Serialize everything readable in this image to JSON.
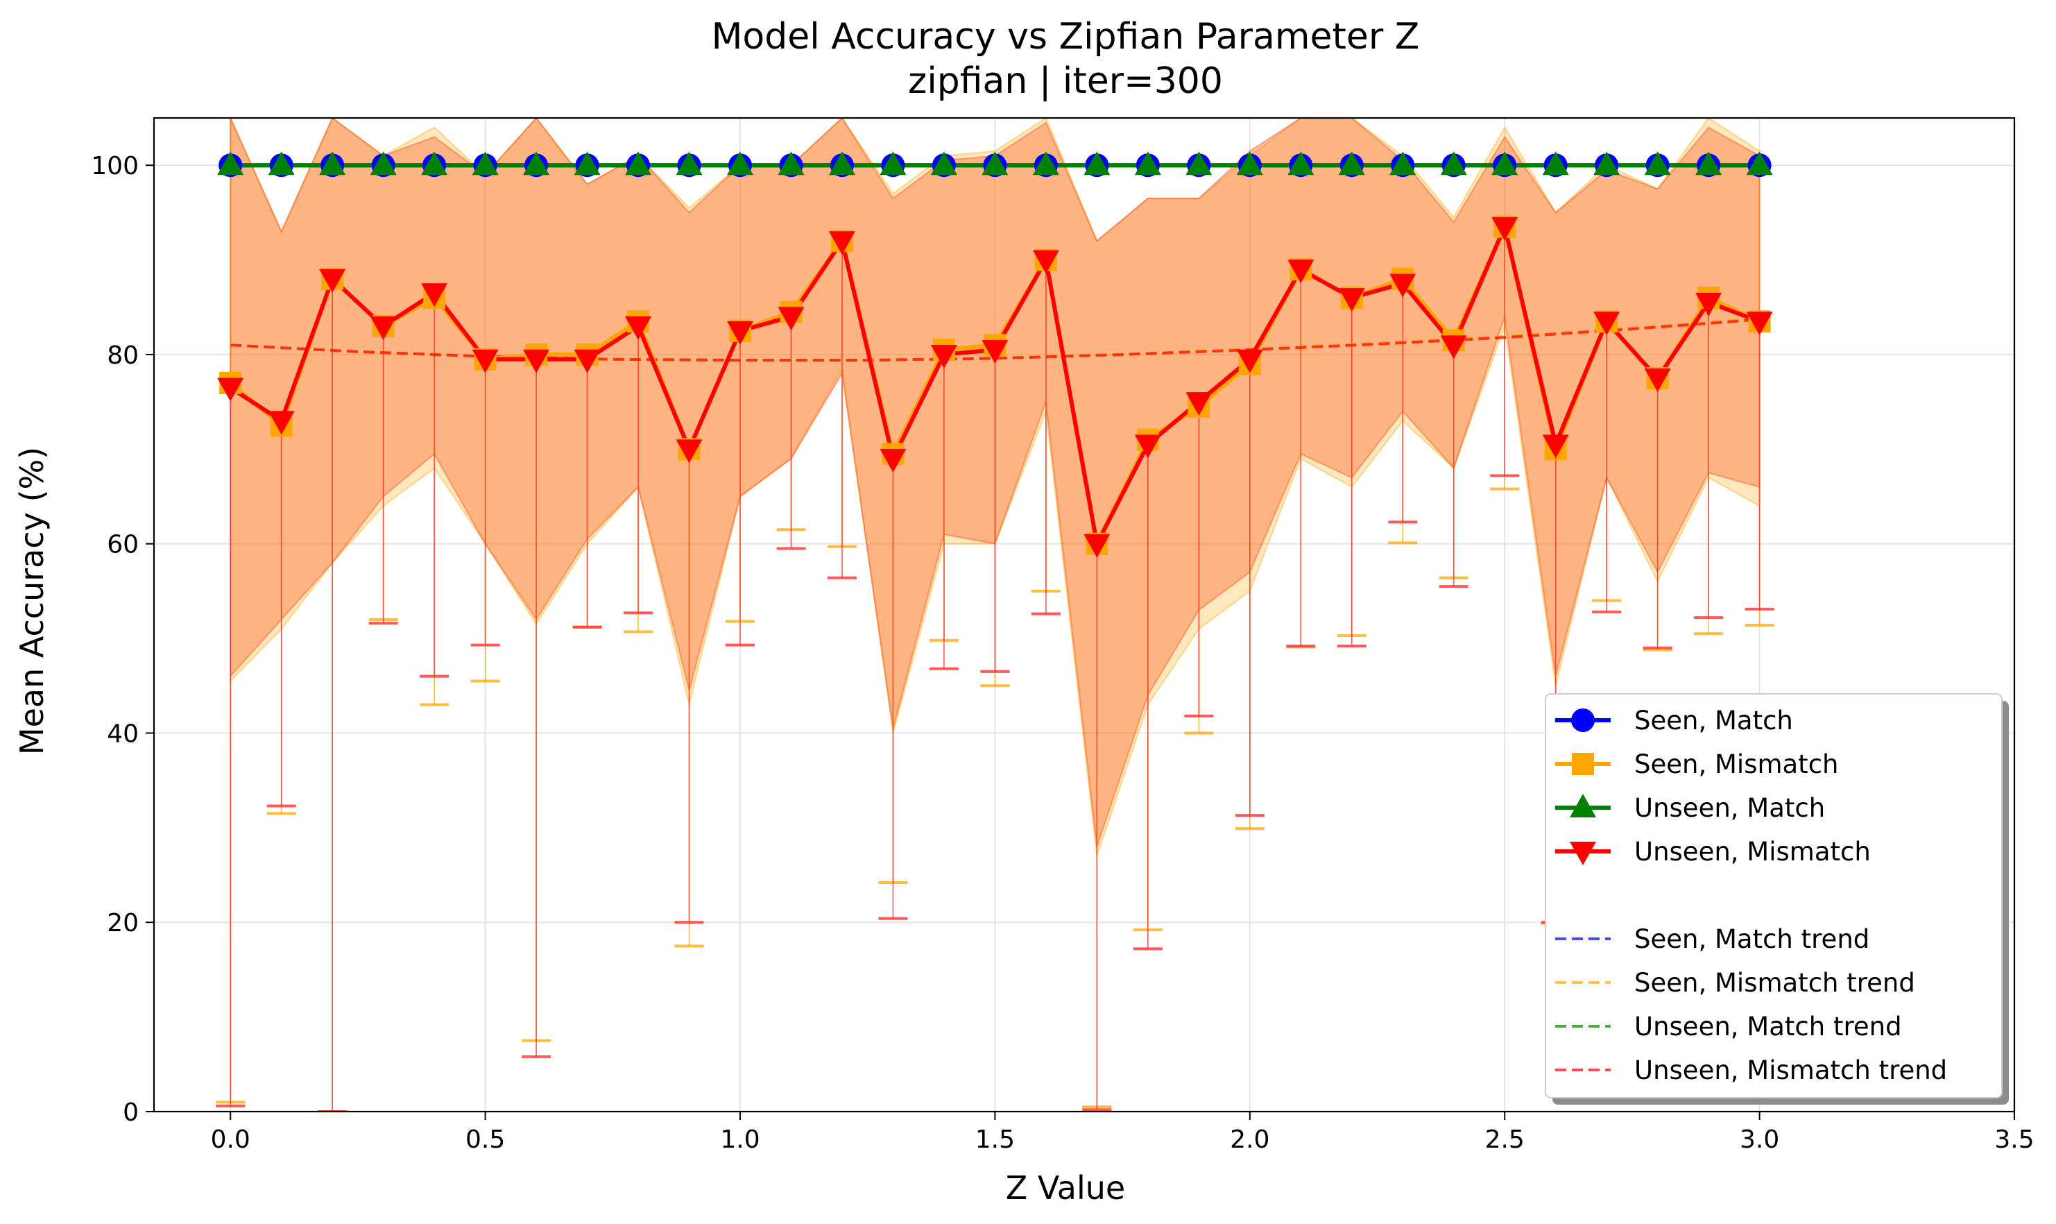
{
  "chart_data": {
    "type": "line",
    "title": "Model Accuracy vs Zipfian Parameter Z",
    "subtitle": "zipfian | iter=300",
    "xlabel": "Z Value",
    "ylabel": "Mean Accuracy (%)",
    "xlim": [
      -0.15,
      3.5
    ],
    "ylim": [
      0,
      105
    ],
    "xticks": [
      0.0,
      0.5,
      1.0,
      1.5,
      2.0,
      2.5,
      3.0,
      3.5
    ],
    "xtick_labels": [
      "0.0",
      "0.5",
      "1.0",
      "1.5",
      "2.0",
      "2.5",
      "3.0",
      "3.5"
    ],
    "yticks": [
      0,
      20,
      40,
      60,
      80,
      100
    ],
    "ytick_labels": [
      "0",
      "20",
      "40",
      "60",
      "80",
      "100"
    ],
    "grid": true,
    "legend_position": "lower-right",
    "x": [
      0.0,
      0.1,
      0.2,
      0.3,
      0.4,
      0.5,
      0.6,
      0.7,
      0.8,
      0.9,
      1.0,
      1.1,
      1.2,
      1.3,
      1.4,
      1.5,
      1.6,
      1.7,
      1.8,
      1.9,
      2.0,
      2.1,
      2.2,
      2.3,
      2.4,
      2.5,
      2.6,
      2.7,
      2.8,
      2.9,
      3.0
    ],
    "series": [
      {
        "name": "Seen, Match",
        "color": "#0000ff",
        "marker": "circle",
        "values": [
          100,
          100,
          100,
          100,
          100,
          100,
          100,
          100,
          100,
          100,
          100,
          100,
          100,
          100,
          100,
          100,
          100,
          100,
          100,
          100,
          100,
          100,
          100,
          100,
          100,
          100,
          100,
          100,
          100,
          100,
          100
        ]
      },
      {
        "name": "Seen, Mismatch",
        "color": "#ffa500",
        "marker": "square",
        "values": [
          77,
          72.5,
          88,
          83,
          86,
          79.5,
          80,
          80,
          83.5,
          70,
          82.5,
          84.5,
          92,
          69.5,
          80.5,
          81,
          90,
          60,
          71,
          74.5,
          79,
          89,
          86,
          88,
          81.5,
          93.5,
          70,
          83.5,
          77.5,
          86,
          83.5
        ],
        "band_lower": [
          45.5,
          51,
          58,
          64,
          68,
          60,
          51.5,
          60,
          66,
          43,
          65,
          69,
          78.5,
          40,
          60,
          60,
          74,
          27,
          43,
          51,
          55,
          69,
          66,
          73,
          68,
          83,
          45,
          67,
          56,
          67,
          64
        ],
        "band_upper": [
          105,
          93,
          105,
          101,
          104,
          99,
          105,
          98,
          101,
          95.5,
          100,
          100,
          105,
          97,
          101,
          101.5,
          105,
          92,
          96.5,
          96.5,
          101,
          105,
          105,
          101,
          94.5,
          104,
          95,
          100,
          97.5,
          105,
          101.5
        ],
        "err_lower": [
          1.0,
          31.5,
          0.0,
          52.0,
          43.0,
          45.5,
          7.5,
          51.2,
          50.7,
          17.5,
          51.8,
          61.5,
          59.7,
          24.2,
          49.8,
          45.0,
          55.0,
          0.5,
          19.2,
          40.0,
          29.9,
          49.1,
          50.3,
          60.1,
          56.4,
          65.8,
          19.9,
          54.0,
          48.8,
          50.5,
          51.4
        ]
      },
      {
        "name": "Unseen, Match",
        "color": "#008000",
        "marker": "triangle-up",
        "values": [
          100,
          100,
          100,
          100,
          100,
          100,
          100,
          100,
          100,
          100,
          100,
          100,
          100,
          100,
          100,
          100,
          100,
          100,
          100,
          100,
          100,
          100,
          100,
          100,
          100,
          100,
          100,
          100,
          100,
          100,
          100
        ]
      },
      {
        "name": "Unseen, Mismatch",
        "color": "#ff0000",
        "marker": "triangle-down",
        "values": [
          76.5,
          73,
          88,
          83,
          86.5,
          79.5,
          79.5,
          79.5,
          83,
          70,
          82.5,
          84,
          92,
          69,
          80,
          80.5,
          90,
          60,
          70.5,
          75,
          79.5,
          89,
          86,
          87.5,
          81,
          93.5,
          70.5,
          83.5,
          77.5,
          85.5,
          83.5
        ],
        "band_lower": [
          46,
          52,
          58,
          65,
          69.5,
          60,
          52,
          60.5,
          66,
          44.5,
          65,
          69,
          78,
          40.5,
          61,
          60,
          75,
          28,
          44,
          53,
          57,
          69.5,
          67,
          74,
          68,
          84,
          46,
          67,
          57,
          67.5,
          66
        ],
        "band_upper": [
          105,
          93,
          105,
          101,
          103,
          99,
          105,
          98,
          101,
          95,
          100,
          100,
          105,
          96.5,
          100.5,
          101,
          104.5,
          92,
          96.5,
          96.5,
          101.5,
          105,
          105,
          100.5,
          94,
          103,
          95,
          99.5,
          97.5,
          104,
          101
        ],
        "err_lower": [
          0.6,
          32.3,
          0.0,
          51.6,
          46.0,
          49.3,
          5.8,
          51.2,
          52.7,
          20.0,
          49.3,
          59.5,
          56.4,
          20.4,
          46.8,
          46.5,
          52.6,
          0.2,
          17.2,
          41.8,
          31.3,
          49.2,
          49.2,
          62.3,
          55.5,
          67.2,
          20.0,
          52.8,
          49.0,
          52.2,
          53.1
        ]
      }
    ],
    "trends": [
      {
        "name": "Seen, Match trend",
        "color": "#0000ff",
        "x": [
          0.0,
          0.5,
          1.0,
          1.5,
          2.0,
          2.5,
          3.0
        ],
        "values": [
          100,
          100,
          100,
          100,
          100,
          100,
          100
        ]
      },
      {
        "name": "Seen, Mismatch trend",
        "color": "#ffa500",
        "x": [
          0.0,
          0.25,
          0.5,
          0.75,
          1.0,
          1.25,
          1.5,
          1.75,
          2.0,
          2.25,
          2.5,
          2.75,
          3.0
        ],
        "values": [
          81,
          80.3,
          79.8,
          79.5,
          79.4,
          79.4,
          79.6,
          80,
          80.6,
          81.2,
          81.9,
          82.8,
          83.8
        ]
      },
      {
        "name": "Unseen, Match trend",
        "color": "#008000",
        "x": [
          0.0,
          0.5,
          1.0,
          1.5,
          2.0,
          2.5,
          3.0
        ],
        "values": [
          100,
          100,
          100,
          100,
          100,
          100,
          100
        ]
      },
      {
        "name": "Unseen, Mismatch trend",
        "color": "#ff0000",
        "x": [
          0.0,
          0.25,
          0.5,
          0.75,
          1.0,
          1.25,
          1.5,
          1.75,
          2.0,
          2.25,
          2.5,
          2.75,
          3.0
        ],
        "values": [
          81,
          80.3,
          79.8,
          79.5,
          79.4,
          79.4,
          79.6,
          80,
          80.5,
          81.1,
          81.8,
          82.7,
          83.7
        ]
      }
    ],
    "legend_items": [
      "Seen, Match",
      "Seen, Mismatch",
      "Unseen, Match",
      "Unseen, Mismatch",
      "",
      "Seen, Match trend",
      "Seen, Mismatch trend",
      "Unseen, Match trend",
      "Unseen, Mismatch trend"
    ]
  }
}
